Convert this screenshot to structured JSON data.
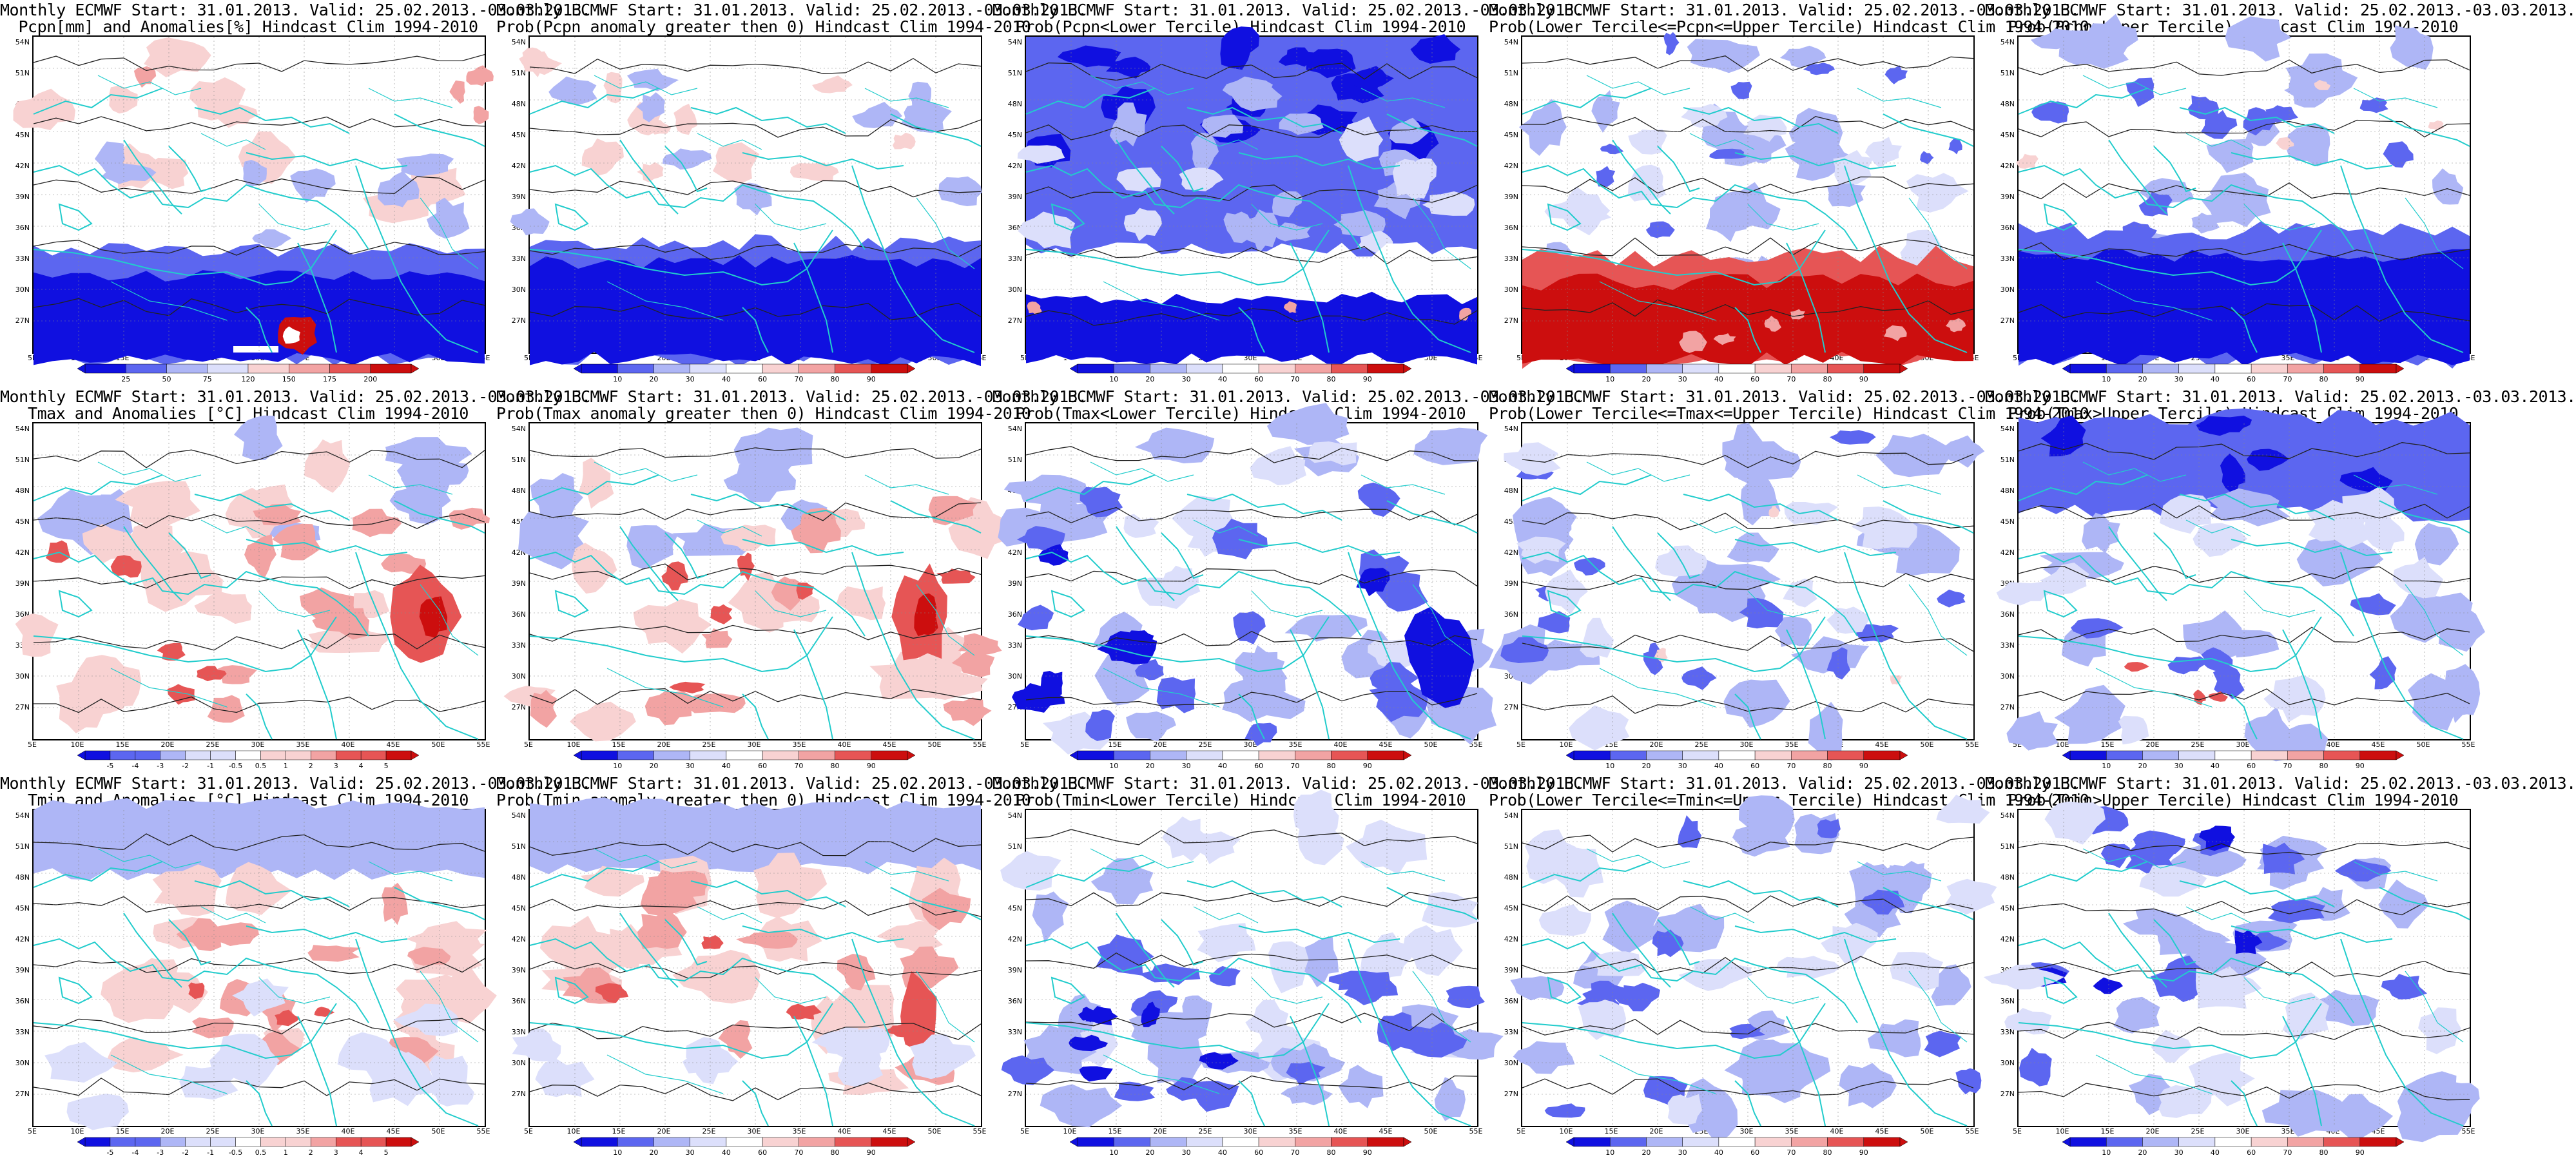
{
  "figure": {
    "colors": {
      "dark_blue": "#1010e0",
      "mid_blue": "#5c66f0",
      "light_blue": "#aeb6f6",
      "pale_blue": "#dcdffb",
      "white": "#ffffff",
      "pale_red": "#f8d2d2",
      "light_red": "#f2a3a3",
      "mid_red": "#e65555",
      "dark_red": "#cc0e0e",
      "coast": "#22cccc",
      "contour": "#222222"
    },
    "lat_labels": [
      "54N",
      "51N",
      "48N",
      "45N",
      "42N",
      "39N",
      "36N",
      "33N",
      "30N",
      "27N"
    ],
    "lon_labels": [
      "5E",
      "10E",
      "15E",
      "20E",
      "25E",
      "30E",
      "35E",
      "40E",
      "45E",
      "50E",
      "55E"
    ],
    "panels": [
      {
        "title1": "Monthly ECMWF Start: 31.01.2013. Valid: 25.02.2013.-03.03.2013.",
        "title2": "Pcpn[mm] and Anomalies[%] Hindcast Clim 1994-2010",
        "colorbar": [
          "25",
          "50",
          "75",
          "120",
          "150",
          "175",
          "200"
        ],
        "icon": "precip-anomaly-map",
        "scheme": "pcp_anom"
      },
      {
        "title1": "Monthly ECMWF Start: 31.01.2013. Valid: 25.02.2013.-03.03.2013.",
        "title2": "Prob(Pcpn anomaly greater then 0) Hindcast Clim 1994-2010",
        "colorbar": [
          "10",
          "20",
          "30",
          "40",
          "60",
          "70",
          "80",
          "90"
        ],
        "icon": "precip-probability-map",
        "scheme": "pcp_prob"
      },
      {
        "title1": "Monthly ECMWF Start: 31.01.2013. Valid: 25.02.2013.-03.03.2013.",
        "title2": "Prob(Pcpn<Lower Tercile) Hindcast Clim 1994-2010",
        "colorbar": [
          "10",
          "20",
          "30",
          "40",
          "60",
          "70",
          "80",
          "90"
        ],
        "icon": "precip-lower-tercile-map",
        "scheme": "pcp_lower"
      },
      {
        "title1": "Monthly ECMWF Start: 31.01.2013. Valid: 25.02.2013.-03.03.2013.",
        "title2": "Prob(Lower Tercile<=Pcpn<=Upper Tercile) Hindcast Clim 1994-2010",
        "colorbar": [
          "10",
          "20",
          "30",
          "40",
          "60",
          "70",
          "80",
          "90"
        ],
        "icon": "precip-middle-tercile-map",
        "scheme": "pcp_middle"
      },
      {
        "title1": "Monthly ECMWF Start: 31.01.2013. Valid: 25.02.2013.-03.03.2013.",
        "title2": "Prob(Pcpn>Upper Tercile) Hindcast Clim 1994-2010",
        "colorbar": [
          "10",
          "20",
          "30",
          "40",
          "60",
          "70",
          "80",
          "90"
        ],
        "icon": "precip-upper-tercile-map",
        "scheme": "pcp_upper"
      },
      {
        "title1": "Monthly ECMWF Start: 31.01.2013. Valid: 25.02.2013.-03.03.2013.",
        "title2": "Tmax and Anomalies [°C] Hindcast Clim 1994-2010",
        "colorbar": [
          "-5",
          "-4",
          "-3",
          "-2",
          "-1",
          "-0.5",
          "0.5",
          "1",
          "2",
          "3",
          "4",
          "5"
        ],
        "icon": "tmax-anomaly-map",
        "scheme": "tmax_anom"
      },
      {
        "title1": "Monthly ECMWF Start: 31.01.2013. Valid: 25.02.2013.-03.03.2013.",
        "title2": "Prob(Tmax anomaly greater then 0) Hindcast Clim 1994-2010",
        "colorbar": [
          "10",
          "20",
          "30",
          "40",
          "60",
          "70",
          "80",
          "90"
        ],
        "icon": "tmax-probability-map",
        "scheme": "tmax_prob"
      },
      {
        "title1": "Monthly ECMWF Start: 31.01.2013. Valid: 25.02.2013.-03.03.2013.",
        "title2": "Prob(Tmax<Lower Tercile) Hindcast Clim 1994-2010",
        "colorbar": [
          "10",
          "20",
          "30",
          "40",
          "60",
          "70",
          "80",
          "90"
        ],
        "icon": "tmax-lower-tercile-map",
        "scheme": "tmax_lower"
      },
      {
        "title1": "Monthly ECMWF Start: 31.01.2013. Valid: 25.02.2013.-03.03.2013.",
        "title2": "Prob(Lower Tercile<=Tmax<=Upper Tercile) Hindcast Clim 1994-2010",
        "colorbar": [
          "10",
          "20",
          "30",
          "40",
          "60",
          "70",
          "80",
          "90"
        ],
        "icon": "tmax-middle-tercile-map",
        "scheme": "tmax_middle"
      },
      {
        "title1": "Monthly ECMWF Start: 31.01.2013. Valid: 25.02.2013.-03.03.2013.",
        "title2": "Prob(Tmax>Upper Tercile) Hindcast Clim 1994-2010",
        "colorbar": [
          "10",
          "20",
          "30",
          "40",
          "60",
          "70",
          "80",
          "90"
        ],
        "icon": "tmax-upper-tercile-map",
        "scheme": "tmax_upper"
      },
      {
        "title1": "Monthly ECMWF Start: 31.01.2013. Valid: 25.02.2013.-03.03.2013.",
        "title2": "Tmin and Anomalies [°C] Hindcast Clim 1994-2010",
        "colorbar": [
          "-5",
          "-4",
          "-3",
          "-2",
          "-1",
          "-0.5",
          "0.5",
          "1",
          "2",
          "3",
          "4",
          "5"
        ],
        "icon": "tmin-anomaly-map",
        "scheme": "tmin_anom"
      },
      {
        "title1": "Monthly ECMWF Start: 31.01.2013. Valid: 25.02.2013.-03.03.2013.",
        "title2": "Prob(Tmin anomaly greater then 0) Hindcast Clim 1994-2010",
        "colorbar": [
          "10",
          "20",
          "30",
          "40",
          "60",
          "70",
          "80",
          "90"
        ],
        "icon": "tmin-probability-map",
        "scheme": "tmin_prob"
      },
      {
        "title1": "Monthly ECMWF Start: 31.01.2013. Valid: 25.02.2013.-03.03.2013.",
        "title2": "Prob(Tmin<Lower Tercile) Hindcast Clim 1994-2010",
        "colorbar": [
          "10",
          "20",
          "30",
          "40",
          "60",
          "70",
          "80",
          "90"
        ],
        "icon": "tmin-lower-tercile-map",
        "scheme": "tmin_lower"
      },
      {
        "title1": "Monthly ECMWF Start: 31.01.2013. Valid: 25.02.2013.-03.03.2013.",
        "title2": "Prob(Lower Tercile<=Tmin<=Upper Tercile) Hindcast Clim 1994-2010",
        "colorbar": [
          "10",
          "20",
          "30",
          "40",
          "60",
          "70",
          "80",
          "90"
        ],
        "icon": "tmin-middle-tercile-map",
        "scheme": "tmin_middle"
      },
      {
        "title1": "Monthly ECMWF Start: 31.01.2013. Valid: 25.02.2013.-03.03.2013.",
        "title2": "Prob(Tmin>Upper Tercile) Hindcast Clim 1994-2010",
        "colorbar": [
          "10",
          "20",
          "30",
          "40",
          "60",
          "70",
          "80",
          "90"
        ],
        "icon": "tmin-upper-tercile-map",
        "scheme": "tmin_upper"
      }
    ]
  }
}
